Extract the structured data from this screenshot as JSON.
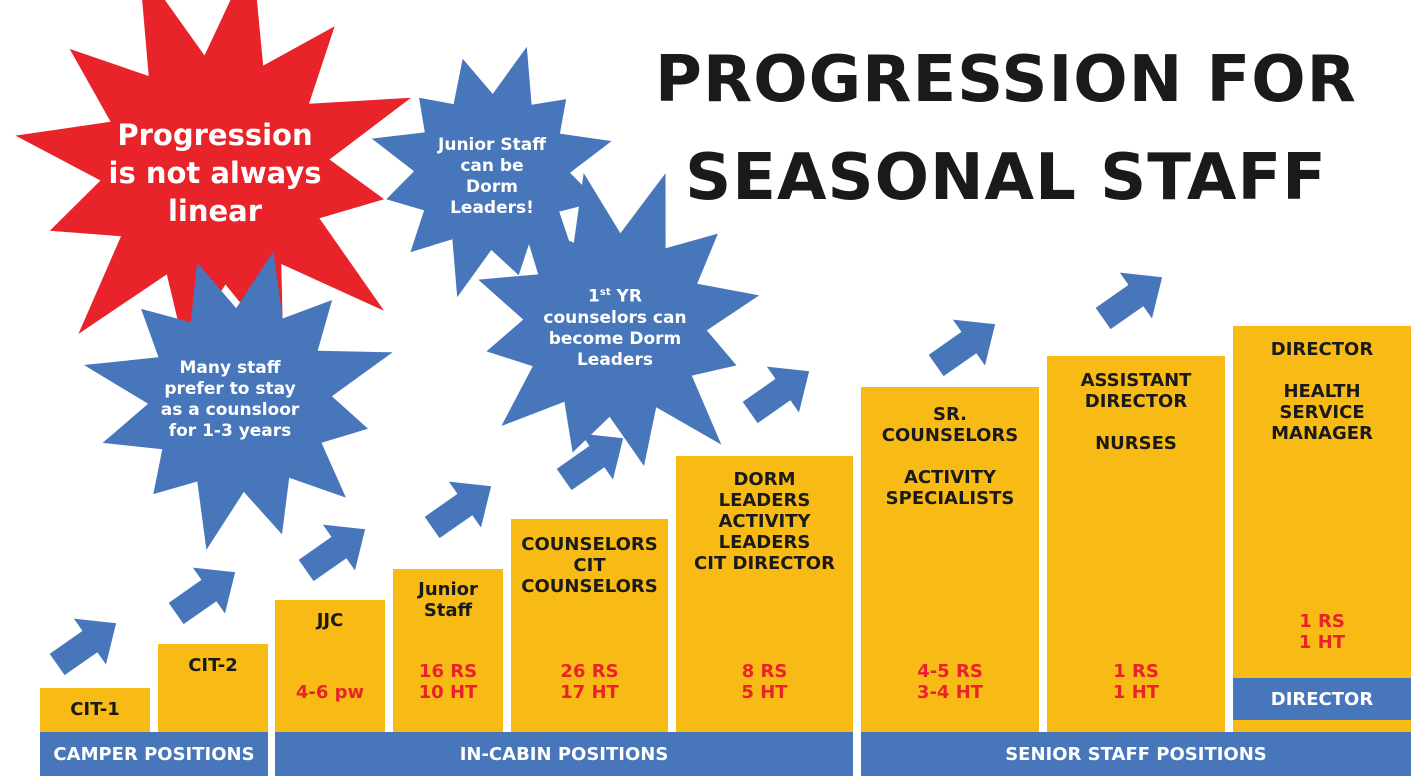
{
  "title": {
    "line1": "PROGRESSION FOR",
    "line2": "SEASONAL STAFF"
  },
  "colors": {
    "column": "#f8bb16",
    "band": "#4876bb",
    "burst_red": "#e8232a",
    "burst_blue": "#4876bb",
    "count_text": "#e8232a"
  },
  "levels": [
    {
      "id": "cit1",
      "labels": [
        "CIT-1"
      ],
      "counts": []
    },
    {
      "id": "cit2",
      "labels": [
        "CIT-2"
      ],
      "counts": []
    },
    {
      "id": "jjc",
      "labels": [
        "JJC"
      ],
      "counts": [
        "4-6 pw"
      ]
    },
    {
      "id": "junior",
      "labels": [
        "Junior",
        "Staff"
      ],
      "counts": [
        "16 RS",
        "10 HT"
      ]
    },
    {
      "id": "counselors",
      "labels": [
        "COUNSELORS",
        "CIT",
        "COUNSELORS"
      ],
      "counts": [
        "26 RS",
        "17 HT"
      ]
    },
    {
      "id": "dorm",
      "labels": [
        "DORM",
        "LEADERS",
        "ACTIVITY",
        "LEADERS",
        "CIT DIRECTOR"
      ],
      "counts": [
        "8 RS",
        "5 HT"
      ]
    },
    {
      "id": "sr",
      "labels": [
        "SR.",
        "COUNSELORS",
        "",
        "ACTIVITY",
        "SPECIALISTS"
      ],
      "counts": [
        "4-5 RS",
        "3-4 HT"
      ]
    },
    {
      "id": "asst",
      "labels": [
        "ASSISTANT",
        "DIRECTOR",
        "",
        "NURSES"
      ],
      "counts": [
        "1 RS",
        "1 HT"
      ]
    },
    {
      "id": "director",
      "labels": [
        "DIRECTOR",
        "",
        "HEALTH",
        "SERVICE",
        "MANAGER"
      ],
      "counts": [
        "1 RS",
        "1 HT"
      ],
      "band": "DIRECTOR"
    }
  ],
  "bands": {
    "camper": "CAMPER POSITIONS",
    "incabin": "IN-CABIN POSITIONS",
    "senior": "SENIOR STAFF POSITIONS"
  },
  "notes": {
    "nonlinear": [
      "Progression",
      "is not always",
      "linear"
    ],
    "junior_dorm": [
      "Junior Staff",
      "can be",
      "Dorm",
      "Leaders!"
    ],
    "first_year": {
      "pre": "1",
      "sup": "st",
      "post": " YR",
      "lines": [
        "counselors can",
        "become Dorm",
        "Leaders"
      ]
    },
    "many_staff": [
      "Many staff",
      "prefer to stay",
      "as a counsloor",
      "for 1-3 years"
    ]
  },
  "icons": {
    "arrow": "arrow-up-right-icon",
    "burst": "starburst-icon"
  }
}
